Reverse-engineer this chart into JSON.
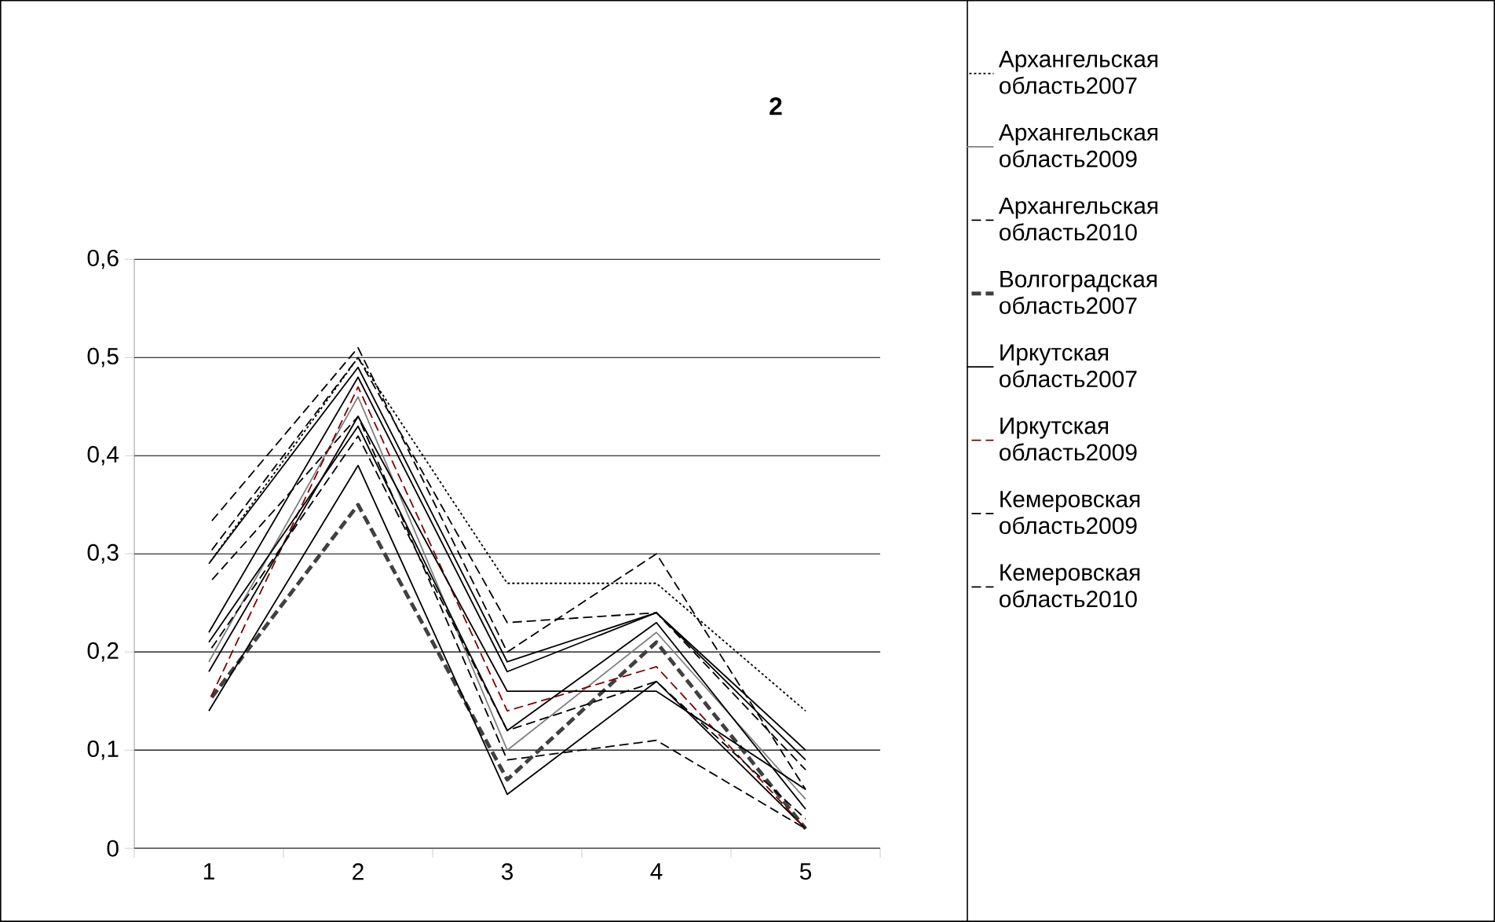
{
  "chart_data": {
    "type": "line",
    "title": "2",
    "categories": [
      "1",
      "2",
      "3",
      "4",
      "5"
    ],
    "ylim": [
      0,
      0.6
    ],
    "yticks": [
      {
        "value": 0,
        "label": "0"
      },
      {
        "value": 0.1,
        "label": "0,1"
      },
      {
        "value": 0.2,
        "label": "0,2"
      },
      {
        "value": 0.3,
        "label": "0,3"
      },
      {
        "value": 0.4,
        "label": "0,4"
      },
      {
        "value": 0.5,
        "label": "0,5"
      },
      {
        "value": 0.6,
        "label": "0,6"
      }
    ],
    "grid": "y",
    "legend": "right",
    "marker": "none",
    "series": [
      {
        "name": "Архангельская область2007",
        "color": "#000000",
        "line_style": "dotted",
        "values": [
          0.29,
          0.5,
          0.27,
          0.27,
          0.14
        ]
      },
      {
        "name": "Архангельская область2009",
        "color": "#808080",
        "line_style": "solid",
        "values": [
          0.19,
          0.46,
          0.1,
          0.22,
          0.05
        ]
      },
      {
        "name": "Архангельская область2010",
        "color": "#000000",
        "line_style": "dashed",
        "values": [
          0.27,
          0.44,
          0.09,
          0.11,
          0.02
        ]
      },
      {
        "name": "Волгоградская область2007",
        "color": "#404040",
        "line_style": "dashed",
        "values": [
          0.15,
          0.35,
          0.07,
          0.21,
          0.02
        ]
      },
      {
        "name": "Иркутская область2007",
        "color": "#000000",
        "line_style": "solid",
        "values": [
          0.14,
          0.39,
          0.055,
          0.17,
          0.02
        ]
      },
      {
        "name": "Иркутская область2009",
        "color": "#800000",
        "line_style": "dashed",
        "values": [
          0.15,
          0.47,
          0.14,
          0.185,
          0.02
        ]
      },
      {
        "name": "Кемеровская область2009",
        "color": "#000000",
        "line_style": "dashed",
        "values": [
          0.2,
          0.42,
          0.12,
          0.17,
          0.03
        ]
      },
      {
        "name": "Кемеровская область2010",
        "color": "#000000",
        "line_style": "dashed",
        "values": [
          0.33,
          0.51,
          0.2,
          0.3,
          0.06
        ]
      },
      {
        "color": "#000000",
        "line_style": "solid",
        "values": [
          0.22,
          0.48,
          0.18,
          0.24,
          0.09
        ]
      },
      {
        "color": "#000000",
        "line_style": "solid",
        "values": [
          0.29,
          0.49,
          0.19,
          0.24,
          0.1
        ]
      },
      {
        "color": "#000000",
        "line_style": "solid",
        "values": [
          0.18,
          0.44,
          0.16,
          0.16,
          0.06
        ]
      },
      {
        "color": "#000000",
        "line_style": "solid",
        "values": [
          0.21,
          0.43,
          0.12,
          0.23,
          0.04
        ]
      },
      {
        "color": "#000000",
        "line_style": "dashed",
        "values": [
          0.3,
          0.5,
          0.23,
          0.24,
          0.08
        ]
      }
    ]
  }
}
